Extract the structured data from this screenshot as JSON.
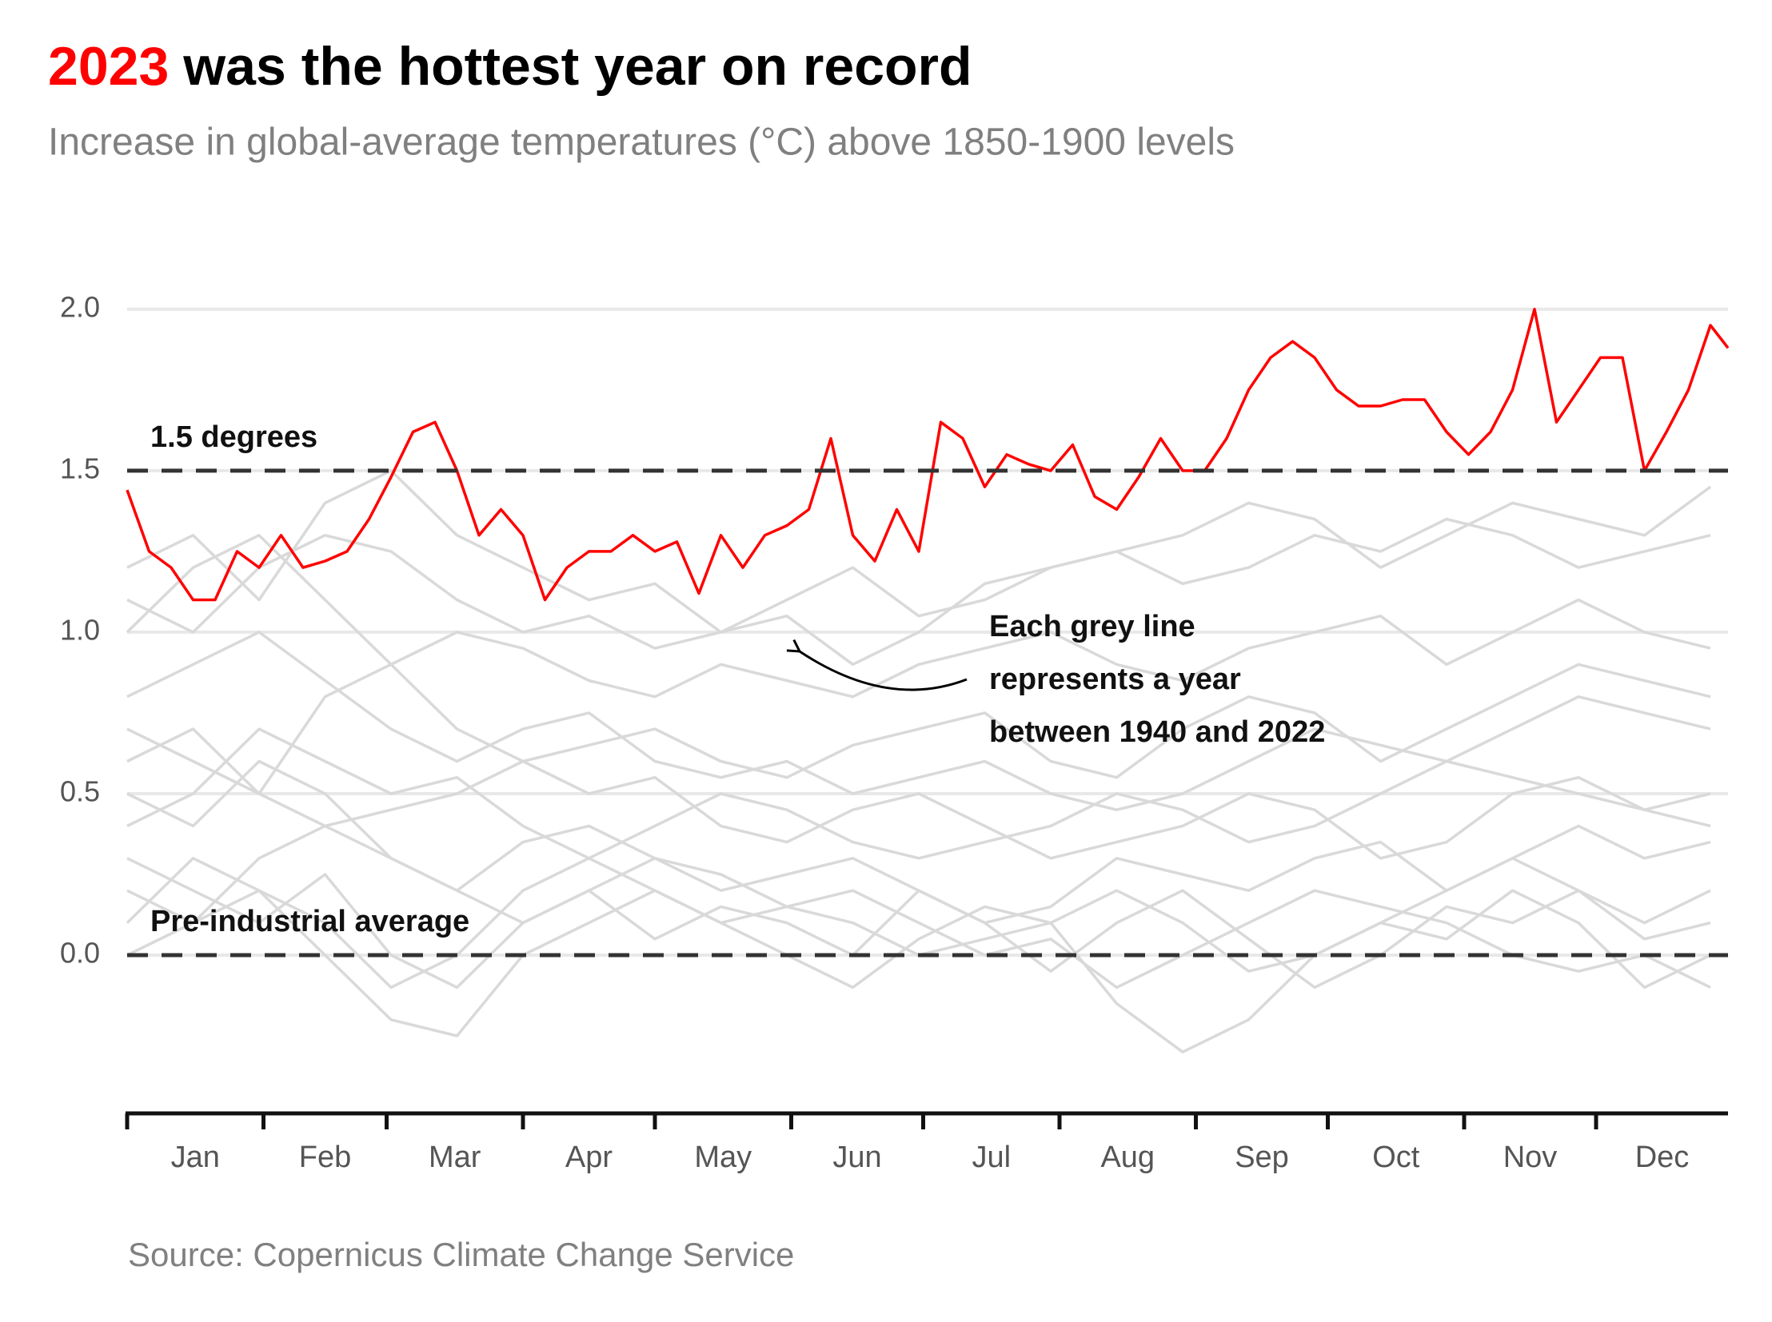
{
  "chart_data": {
    "type": "line",
    "title": [
      "2023",
      "was the hottest year on record"
    ],
    "title_colors": [
      "#ff0000",
      "#000000"
    ],
    "subtitle": "Increase in global-average temperatures (°C) above 1850-1900 levels",
    "source": "Source: Copernicus Climate Change Service",
    "annotation": [
      "Each grey line",
      "represents a year",
      "between 1940 and 2022"
    ],
    "hlines": [
      {
        "value": 1.5,
        "label": "1.5 degrees"
      },
      {
        "value": 0,
        "label": "Pre-industrial average"
      }
    ],
    "xlim": [
      1,
      365
    ],
    "xticks": [
      {
        "value": 1,
        "label": "Jan"
      },
      {
        "value": 32,
        "label": "Feb"
      },
      {
        "value": 60,
        "label": "Mar"
      },
      {
        "value": 91,
        "label": "Apr"
      },
      {
        "value": 121,
        "label": "May"
      },
      {
        "value": 152,
        "label": "Jun"
      },
      {
        "value": 182,
        "label": "Jul"
      },
      {
        "value": 213,
        "label": "Aug"
      },
      {
        "value": 244,
        "label": "Sep"
      },
      {
        "value": 274,
        "label": "Oct"
      },
      {
        "value": 305,
        "label": "Nov"
      },
      {
        "value": 335,
        "label": "Dec"
      }
    ],
    "ylim": [
      -0.49,
      2.2
    ],
    "yticks": [
      {
        "value": 0,
        "label": "0.0"
      },
      0.5,
      {
        "value": 1,
        "label": "1.0"
      },
      1.5,
      {
        "value": 2,
        "label": "2.0"
      }
    ],
    "grid": true,
    "series": [
      {
        "color": "#d9d9d9",
        "x": [
          1,
          16,
          31,
          46,
          61,
          76,
          91,
          106,
          121,
          136,
          151,
          166,
          181,
          196,
          211,
          226,
          241,
          256,
          271,
          286,
          301,
          316,
          331,
          346,
          361
        ],
        "values": [
          0.3,
          0.2,
          0.1,
          0.25,
          0.0,
          -0.1,
          0.1,
          0.2,
          0.05,
          0.15,
          0.1,
          0.0,
          0.2,
          0.1,
          -0.05,
          0.1,
          0.2,
          0.05,
          -0.1,
          0.0,
          0.15,
          0.1,
          0.2,
          0.05,
          0.1
        ]
      },
      {
        "color": "#d9d9d9",
        "x": [
          1,
          16,
          31,
          46,
          61,
          76,
          91,
          106,
          121,
          136,
          151,
          166,
          181,
          196,
          211,
          226,
          241,
          256,
          271,
          286,
          301,
          316,
          331,
          346,
          361
        ],
        "values": [
          0.1,
          0.3,
          0.2,
          0.0,
          -0.2,
          -0.25,
          0.0,
          0.1,
          0.2,
          0.1,
          0.0,
          -0.1,
          0.05,
          0.15,
          0.1,
          -0.15,
          -0.3,
          -0.2,
          0.0,
          0.1,
          0.05,
          0.2,
          0.1,
          -0.1,
          0.0
        ]
      },
      {
        "color": "#d9d9d9",
        "x": [
          1,
          16,
          31,
          46,
          61,
          76,
          91,
          106,
          121,
          136,
          151,
          166,
          181,
          196,
          211,
          226,
          241,
          256,
          271,
          286,
          301,
          316,
          331,
          346,
          361
        ],
        "values": [
          0.5,
          0.4,
          0.6,
          0.5,
          0.3,
          0.2,
          0.35,
          0.4,
          0.3,
          0.2,
          0.25,
          0.3,
          0.2,
          0.1,
          0.15,
          0.3,
          0.25,
          0.2,
          0.3,
          0.35,
          0.2,
          0.3,
          0.4,
          0.3,
          0.35
        ]
      },
      {
        "color": "#d9d9d9",
        "x": [
          1,
          16,
          31,
          46,
          61,
          76,
          91,
          106,
          121,
          136,
          151,
          166,
          181,
          196,
          211,
          226,
          241,
          256,
          271,
          286,
          301,
          316,
          331,
          346,
          361
        ],
        "values": [
          0.6,
          0.7,
          0.5,
          0.4,
          0.45,
          0.5,
          0.6,
          0.5,
          0.55,
          0.4,
          0.35,
          0.45,
          0.5,
          0.4,
          0.3,
          0.35,
          0.4,
          0.5,
          0.45,
          0.3,
          0.35,
          0.5,
          0.55,
          0.45,
          0.4
        ]
      },
      {
        "color": "#d9d9d9",
        "x": [
          1,
          16,
          31,
          46,
          61,
          76,
          91,
          106,
          121,
          136,
          151,
          166,
          181,
          196,
          211,
          226,
          241,
          256,
          271,
          286,
          301,
          316,
          331,
          346,
          361
        ],
        "values": [
          0.2,
          0.1,
          0.3,
          0.4,
          0.3,
          0.2,
          0.1,
          0.2,
          0.3,
          0.25,
          0.15,
          0.1,
          0.0,
          0.05,
          0.1,
          0.2,
          0.1,
          -0.05,
          0.0,
          0.1,
          0.2,
          0.3,
          0.2,
          0.1,
          0.2
        ]
      },
      {
        "color": "#d9d9d9",
        "x": [
          1,
          16,
          31,
          46,
          61,
          76,
          91,
          106,
          121,
          136,
          151,
          166,
          181,
          196,
          211,
          226,
          241,
          256,
          271,
          286,
          301,
          316,
          331,
          346,
          361
        ],
        "values": [
          0.8,
          0.9,
          1.0,
          0.85,
          0.7,
          0.6,
          0.7,
          0.75,
          0.6,
          0.55,
          0.6,
          0.5,
          0.55,
          0.6,
          0.5,
          0.45,
          0.5,
          0.6,
          0.7,
          0.65,
          0.6,
          0.7,
          0.8,
          0.75,
          0.7
        ]
      },
      {
        "color": "#d9d9d9",
        "x": [
          1,
          16,
          31,
          46,
          61,
          76,
          91,
          106,
          121,
          136,
          151,
          166,
          181,
          196,
          211,
          226,
          241,
          256,
          271,
          286,
          301,
          316,
          331,
          346,
          361
        ],
        "values": [
          1.0,
          1.2,
          1.3,
          1.1,
          0.9,
          1.0,
          0.95,
          0.85,
          0.8,
          0.9,
          0.85,
          0.8,
          0.9,
          0.95,
          1.0,
          0.9,
          0.85,
          0.95,
          1.0,
          1.05,
          0.9,
          1.0,
          1.1,
          1.0,
          0.95
        ]
      },
      {
        "color": "#d9d9d9",
        "x": [
          1,
          16,
          31,
          46,
          61,
          76,
          91,
          106,
          121,
          136,
          151,
          166,
          181,
          196,
          211,
          226,
          241,
          256,
          271,
          286,
          301,
          316,
          331,
          346,
          361
        ],
        "values": [
          1.2,
          1.3,
          1.1,
          1.4,
          1.5,
          1.3,
          1.2,
          1.1,
          1.15,
          1.0,
          1.1,
          1.2,
          1.05,
          1.1,
          1.2,
          1.25,
          1.15,
          1.2,
          1.3,
          1.25,
          1.35,
          1.3,
          1.2,
          1.25,
          1.3
        ]
      },
      {
        "color": "#d9d9d9",
        "x": [
          1,
          16,
          31,
          46,
          61,
          76,
          91,
          106,
          121,
          136,
          151,
          166,
          181,
          196,
          211,
          226,
          241,
          256,
          271,
          286,
          301,
          316,
          331,
          346,
          361
        ],
        "values": [
          1.1,
          1.0,
          1.2,
          1.3,
          1.25,
          1.1,
          1.0,
          1.05,
          0.95,
          1.0,
          1.05,
          0.9,
          1.0,
          1.15,
          1.2,
          1.25,
          1.3,
          1.4,
          1.35,
          1.2,
          1.3,
          1.4,
          1.35,
          1.3,
          1.45
        ]
      },
      {
        "color": "#d9d9d9",
        "x": [
          1,
          16,
          31,
          46,
          61,
          76,
          91,
          106,
          121,
          136,
          151,
          166,
          181,
          196,
          211,
          226,
          241,
          256,
          271,
          286,
          301,
          316,
          331,
          346,
          361
        ],
        "values": [
          0.4,
          0.5,
          0.7,
          0.6,
          0.5,
          0.55,
          0.4,
          0.3,
          0.4,
          0.5,
          0.45,
          0.35,
          0.3,
          0.35,
          0.4,
          0.5,
          0.45,
          0.35,
          0.4,
          0.5,
          0.6,
          0.55,
          0.5,
          0.45,
          0.5
        ]
      },
      {
        "color": "#d9d9d9",
        "x": [
          1,
          16,
          31,
          46,
          61,
          76,
          91,
          106,
          121,
          136,
          151,
          166,
          181,
          196,
          211,
          226,
          241,
          256,
          271,
          286,
          301,
          316,
          331,
          346,
          361
        ],
        "values": [
          0.7,
          0.6,
          0.5,
          0.8,
          0.9,
          0.7,
          0.6,
          0.65,
          0.7,
          0.6,
          0.55,
          0.65,
          0.7,
          0.75,
          0.6,
          0.55,
          0.7,
          0.8,
          0.75,
          0.6,
          0.7,
          0.8,
          0.9,
          0.85,
          0.8
        ]
      },
      {
        "color": "#d9d9d9",
        "x": [
          1,
          16,
          31,
          46,
          61,
          76,
          91,
          106,
          121,
          136,
          151,
          166,
          181,
          196,
          211,
          226,
          241,
          256,
          271,
          286,
          301,
          316,
          331,
          346,
          361
        ],
        "values": [
          0.0,
          0.1,
          0.2,
          0.1,
          -0.1,
          0.0,
          0.2,
          0.3,
          0.2,
          0.1,
          0.15,
          0.2,
          0.1,
          0.0,
          0.05,
          -0.1,
          0.0,
          0.1,
          0.2,
          0.15,
          0.1,
          0.0,
          -0.05,
          0.0,
          -0.1
        ]
      },
      {
        "color": "#ff0000",
        "x": [
          1,
          6,
          11,
          16,
          21,
          26,
          31,
          36,
          41,
          46,
          51,
          56,
          61,
          66,
          71,
          76,
          81,
          86,
          91,
          96,
          101,
          106,
          111,
          116,
          121,
          126,
          131,
          136,
          141,
          146,
          151,
          156,
          161,
          166,
          171,
          176,
          181,
          186,
          191,
          196,
          201,
          206,
          211,
          216,
          221,
          226,
          231,
          236,
          241,
          246,
          251,
          256,
          261,
          266,
          271,
          276,
          281,
          286,
          291,
          296,
          301,
          306,
          311,
          316,
          321,
          326,
          331,
          336,
          341,
          346,
          351,
          356,
          361,
          365
        ],
        "values": [
          1.44,
          1.25,
          1.2,
          1.1,
          1.1,
          1.25,
          1.2,
          1.3,
          1.2,
          1.22,
          1.25,
          1.35,
          1.48,
          1.62,
          1.65,
          1.5,
          1.3,
          1.38,
          1.3,
          1.1,
          1.2,
          1.25,
          1.25,
          1.3,
          1.25,
          1.28,
          1.12,
          1.3,
          1.2,
          1.3,
          1.33,
          1.38,
          1.6,
          1.3,
          1.22,
          1.38,
          1.25,
          1.65,
          1.6,
          1.45,
          1.55,
          1.52,
          1.5,
          1.58,
          1.42,
          1.38,
          1.48,
          1.6,
          1.5,
          1.5,
          1.6,
          1.75,
          1.85,
          1.9,
          1.85,
          1.75,
          1.7,
          1.7,
          1.72,
          1.72,
          1.62,
          1.55,
          1.62,
          1.75,
          2.0,
          1.65,
          1.75,
          1.85,
          1.85,
          1.5,
          1.62,
          1.75,
          1.95,
          1.88
        ]
      }
    ]
  }
}
